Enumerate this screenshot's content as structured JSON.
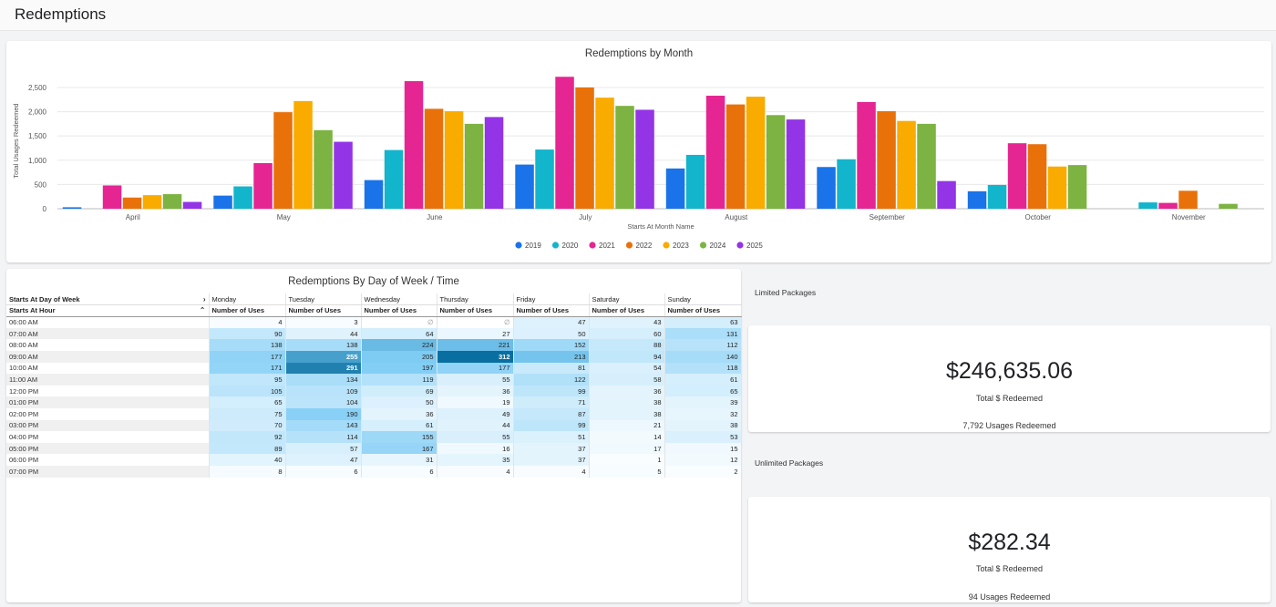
{
  "page": {
    "title": "Redemptions"
  },
  "chart_data": {
    "type": "bar",
    "title": "Redemptions by Month",
    "xlabel": "Starts At Month Name",
    "ylabel": "Total Usages Redeemed",
    "ylim": [
      0,
      2800
    ],
    "yticks": [
      0,
      500,
      1000,
      1500,
      2000,
      2500
    ],
    "ytick_labels": [
      "0",
      "500",
      "1,000",
      "1,500",
      "2,000",
      "2,500"
    ],
    "grid": true,
    "legend_position": "bottom",
    "categories": [
      "April",
      "May",
      "June",
      "July",
      "August",
      "September",
      "October",
      "November"
    ],
    "series": [
      {
        "name": "2019",
        "color": "#1a73e8",
        "values": [
          30,
          270,
          590,
          910,
          830,
          860,
          360,
          null
        ]
      },
      {
        "name": "2020",
        "color": "#12b5cb",
        "values": [
          null,
          460,
          1210,
          1220,
          1110,
          1020,
          490,
          130
        ]
      },
      {
        "name": "2021",
        "color": "#e52592",
        "values": [
          480,
          940,
          2630,
          2720,
          2330,
          2200,
          1350,
          120
        ]
      },
      {
        "name": "2022",
        "color": "#e8710a",
        "values": [
          230,
          1990,
          2060,
          2500,
          2150,
          2010,
          1330,
          370
        ]
      },
      {
        "name": "2023",
        "color": "#f9ab00",
        "values": [
          280,
          2220,
          2010,
          2290,
          2310,
          1810,
          870,
          null
        ]
      },
      {
        "name": "2024",
        "color": "#7cb342",
        "values": [
          300,
          1620,
          1750,
          2120,
          1930,
          1750,
          900,
          100
        ]
      },
      {
        "name": "2025",
        "color": "#9334e6",
        "values": [
          140,
          1380,
          1890,
          2040,
          1840,
          570,
          null,
          null
        ]
      }
    ]
  },
  "table": {
    "title": "Redemptions By Day of Week / Time",
    "row_header_1": "Starts At Day of Week",
    "row_header_2": "Starts At Hour",
    "expand_icon": "chevron-right-icon",
    "collapse_icon": "chevron-up-icon",
    "days": [
      "Monday",
      "Tuesday",
      "Wednesday",
      "Thursday",
      "Friday",
      "Saturday",
      "Sunday"
    ],
    "measure": "Number of Uses",
    "null_symbol": "∅",
    "hours": [
      "06:00 AM",
      "07:00 AM",
      "08:00 AM",
      "09:00 AM",
      "10:00 AM",
      "11:00 AM",
      "12:00 PM",
      "01:00 PM",
      "02:00 PM",
      "03:00 PM",
      "04:00 PM",
      "05:00 PM",
      "06:00 PM",
      "07:00 PM"
    ],
    "values": [
      [
        4,
        3,
        null,
        null,
        47,
        43,
        63
      ],
      [
        90,
        44,
        64,
        27,
        50,
        60,
        131
      ],
      [
        138,
        138,
        224,
        221,
        152,
        88,
        112
      ],
      [
        177,
        255,
        205,
        312,
        213,
        94,
        140
      ],
      [
        171,
        291,
        197,
        177,
        81,
        54,
        118
      ],
      [
        95,
        134,
        119,
        55,
        122,
        58,
        61
      ],
      [
        105,
        109,
        69,
        36,
        99,
        36,
        65
      ],
      [
        65,
        104,
        50,
        19,
        71,
        38,
        39
      ],
      [
        75,
        190,
        36,
        49,
        87,
        38,
        32
      ],
      [
        70,
        143,
        61,
        44,
        99,
        21,
        38
      ],
      [
        92,
        114,
        155,
        55,
        51,
        14,
        53
      ],
      [
        89,
        57,
        167,
        16,
        37,
        17,
        15
      ],
      [
        40,
        47,
        31,
        35,
        37,
        1,
        12
      ],
      [
        8,
        6,
        6,
        4,
        4,
        5,
        2
      ]
    ]
  },
  "limited": {
    "section_label": "Limited Packages",
    "value": "$246,635.06",
    "value_label": "Total $ Redeemed",
    "usages": "7,792 Usages Redeemed"
  },
  "unlimited": {
    "section_label": "Unlimited Packages",
    "value": "$282.34",
    "value_label": "Total $ Redeemed",
    "usages": "94 Usages Redeemed"
  }
}
